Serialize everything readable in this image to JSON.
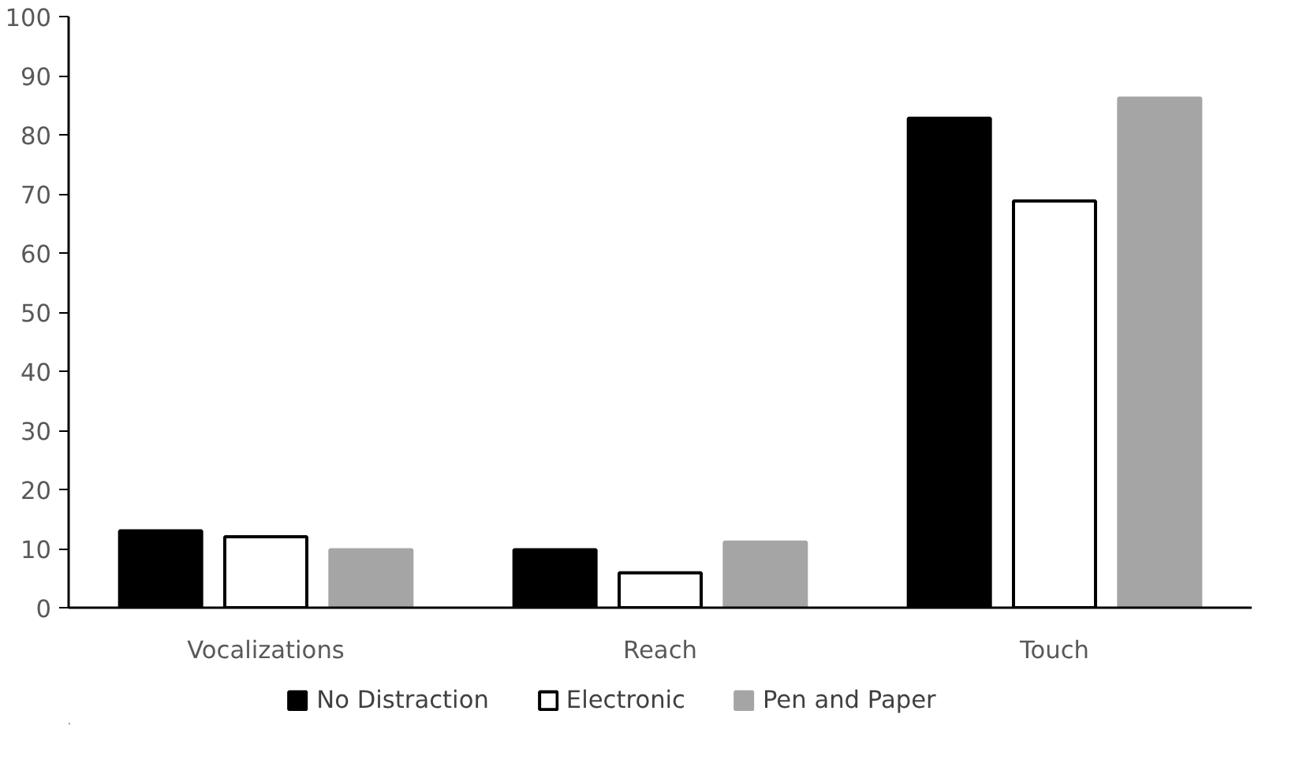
{
  "chart_data": {
    "type": "bar",
    "categories": [
      "Vocalizations",
      "Reach",
      "Touch"
    ],
    "series": [
      {
        "name": "No Distraction",
        "color": "#000000",
        "values": [
          13,
          9.8,
          82.8
        ]
      },
      {
        "name": "Electronic",
        "color": "#ffffff",
        "values": [
          12,
          5.9,
          68.8
        ]
      },
      {
        "name": "Pen and Paper",
        "color": "#a5a5a5",
        "values": [
          9.8,
          11.1,
          86.2
        ]
      }
    ],
    "ylim": [
      0,
      100
    ],
    "yticks": [
      0,
      10,
      20,
      30,
      40,
      50,
      60,
      70,
      80,
      90,
      100
    ],
    "grid": false,
    "legend": "bottom"
  }
}
